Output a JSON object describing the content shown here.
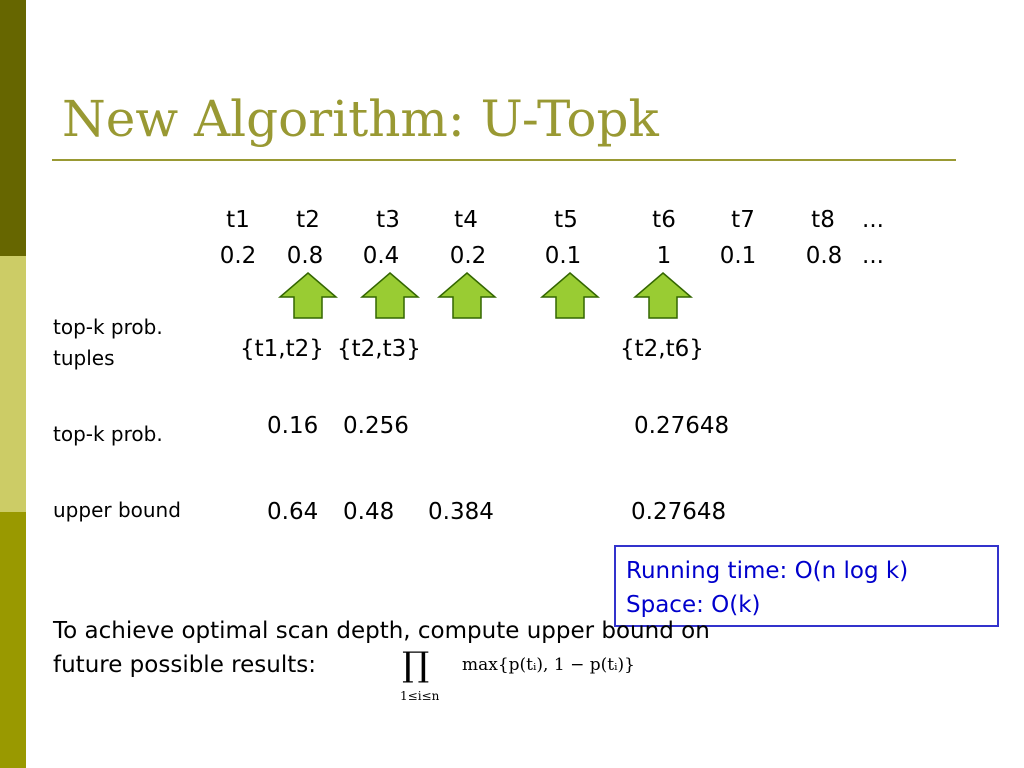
{
  "title": "New Algorithm: U-Topk",
  "tuples": {
    "names": [
      "t1",
      "t2",
      "t3",
      "t4",
      "t5",
      "t6",
      "t7",
      "t8",
      "..."
    ],
    "probs": [
      "0.2",
      "0.8",
      "0.4",
      "0.2",
      "0.1",
      "1",
      "0.1",
      "0.8",
      "..."
    ]
  },
  "rows": {
    "tuples_label": [
      "top-k prob.",
      "tuples"
    ],
    "prob_label": "top-k prob.",
    "bound_label": "upper bound"
  },
  "sets": [
    "{t1,t2}",
    "{t2,t3}",
    "{t2,t6}"
  ],
  "probs": [
    "0.16",
    "0.256",
    "0.27648"
  ],
  "bounds": [
    "0.64",
    "0.48",
    "0.384",
    "0.27648"
  ],
  "box": [
    "Running time: O(n log k)",
    "Space: O(k)"
  ],
  "footer": {
    "lines": [
      "To achieve optimal scan depth, compute upper bound on",
      "future possible results:"
    ],
    "formula": {
      "symbol": "∏",
      "range": "1≤i≤n",
      "body": "max{p(tᵢ), 1 − p(tᵢ)}"
    }
  }
}
